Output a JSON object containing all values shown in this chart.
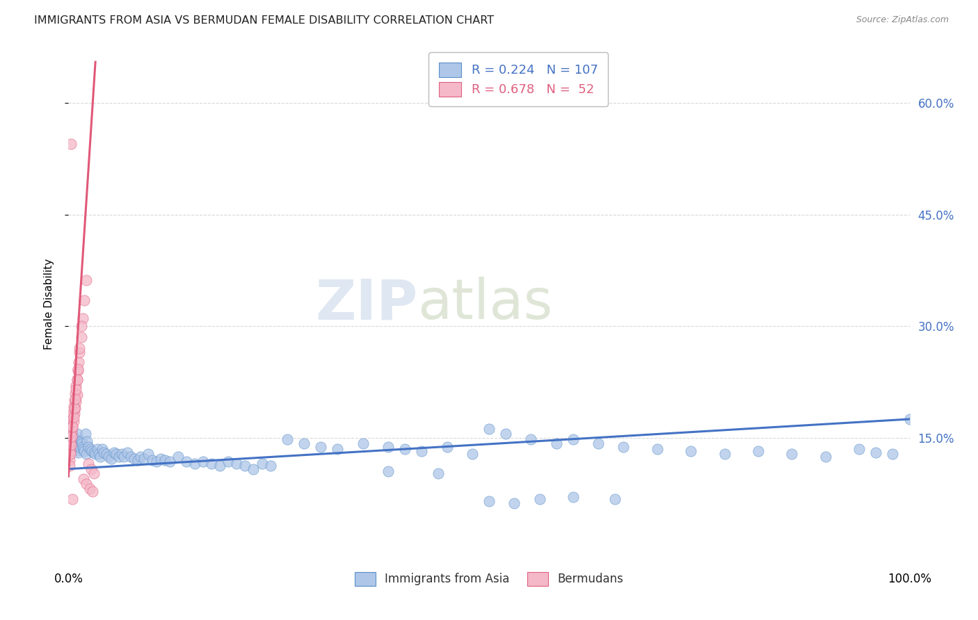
{
  "title": "IMMIGRANTS FROM ASIA VS BERMUDAN FEMALE DISABILITY CORRELATION CHART",
  "source": "Source: ZipAtlas.com",
  "ylabel": "Female Disability",
  "watermark_zip": "ZIP",
  "watermark_atlas": "atlas",
  "legend_labels": [
    "Immigrants from Asia",
    "Bermudans"
  ],
  "blue_R": 0.224,
  "blue_N": 107,
  "pink_R": 0.678,
  "pink_N": 52,
  "blue_color": "#aec6e8",
  "blue_edge_color": "#5b8fc9",
  "pink_color": "#f4b8c8",
  "pink_edge_color": "#e06080",
  "blue_line_color": "#4472c4",
  "pink_line_color": "#e05878",
  "label_color": "#4472c4",
  "xmin": 0.0,
  "xmax": 1.0,
  "ymin": -0.02,
  "ymax": 0.68,
  "yticks": [
    0.15,
    0.3,
    0.45,
    0.6
  ],
  "ytick_labels": [
    "15.0%",
    "30.0%",
    "45.0%",
    "60.0%"
  ],
  "background_color": "#ffffff",
  "grid_color": "#d8d8d8",
  "blue_scatter_x": [
    0.001,
    0.002,
    0.002,
    0.003,
    0.003,
    0.004,
    0.004,
    0.005,
    0.005,
    0.006,
    0.006,
    0.007,
    0.007,
    0.008,
    0.008,
    0.009,
    0.009,
    0.01,
    0.01,
    0.011,
    0.012,
    0.013,
    0.014,
    0.015,
    0.016,
    0.017,
    0.018,
    0.019,
    0.02,
    0.021,
    0.022,
    0.024,
    0.026,
    0.028,
    0.03,
    0.032,
    0.034,
    0.036,
    0.038,
    0.04,
    0.042,
    0.045,
    0.048,
    0.051,
    0.054,
    0.057,
    0.06,
    0.063,
    0.066,
    0.07,
    0.074,
    0.078,
    0.082,
    0.086,
    0.09,
    0.095,
    0.1,
    0.105,
    0.11,
    0.115,
    0.12,
    0.13,
    0.14,
    0.15,
    0.16,
    0.17,
    0.18,
    0.19,
    0.2,
    0.21,
    0.22,
    0.23,
    0.24,
    0.26,
    0.28,
    0.3,
    0.32,
    0.35,
    0.38,
    0.4,
    0.42,
    0.45,
    0.48,
    0.5,
    0.52,
    0.55,
    0.58,
    0.6,
    0.63,
    0.66,
    0.7,
    0.74,
    0.78,
    0.82,
    0.86,
    0.9,
    0.94,
    0.96,
    0.98,
    1.0,
    0.38,
    0.44,
    0.5,
    0.53,
    0.56,
    0.6,
    0.65
  ],
  "blue_scatter_y": [
    0.155,
    0.15,
    0.148,
    0.145,
    0.142,
    0.158,
    0.138,
    0.155,
    0.135,
    0.15,
    0.145,
    0.148,
    0.142,
    0.14,
    0.138,
    0.136,
    0.148,
    0.155,
    0.133,
    0.13,
    0.145,
    0.142,
    0.138,
    0.145,
    0.142,
    0.138,
    0.135,
    0.132,
    0.155,
    0.128,
    0.145,
    0.138,
    0.135,
    0.132,
    0.13,
    0.128,
    0.135,
    0.128,
    0.125,
    0.135,
    0.13,
    0.128,
    0.125,
    0.122,
    0.13,
    0.128,
    0.125,
    0.128,
    0.125,
    0.13,
    0.125,
    0.122,
    0.12,
    0.125,
    0.122,
    0.128,
    0.12,
    0.118,
    0.122,
    0.12,
    0.118,
    0.125,
    0.118,
    0.115,
    0.118,
    0.115,
    0.112,
    0.118,
    0.115,
    0.112,
    0.108,
    0.115,
    0.112,
    0.148,
    0.142,
    0.138,
    0.135,
    0.142,
    0.138,
    0.135,
    0.132,
    0.138,
    0.128,
    0.162,
    0.155,
    0.148,
    0.142,
    0.148,
    0.142,
    0.138,
    0.135,
    0.132,
    0.128,
    0.132,
    0.128,
    0.125,
    0.135,
    0.13,
    0.128,
    0.175,
    0.105,
    0.102,
    0.065,
    0.062,
    0.068,
    0.07,
    0.068
  ],
  "pink_scatter_x": [
    0.001,
    0.001,
    0.001,
    0.002,
    0.002,
    0.002,
    0.003,
    0.003,
    0.004,
    0.004,
    0.005,
    0.005,
    0.006,
    0.006,
    0.007,
    0.007,
    0.008,
    0.008,
    0.009,
    0.009,
    0.01,
    0.01,
    0.011,
    0.012,
    0.013,
    0.015,
    0.017,
    0.019,
    0.021,
    0.024,
    0.027,
    0.03,
    0.001,
    0.001,
    0.002,
    0.003,
    0.004,
    0.005,
    0.006,
    0.007,
    0.008,
    0.009,
    0.01,
    0.011,
    0.013,
    0.015,
    0.018,
    0.021,
    0.025,
    0.029,
    0.003,
    0.005
  ],
  "pink_scatter_y": [
    0.148,
    0.138,
    0.128,
    0.158,
    0.145,
    0.132,
    0.168,
    0.152,
    0.175,
    0.158,
    0.182,
    0.165,
    0.192,
    0.172,
    0.2,
    0.182,
    0.21,
    0.19,
    0.22,
    0.198,
    0.228,
    0.208,
    0.24,
    0.252,
    0.265,
    0.285,
    0.31,
    0.335,
    0.362,
    0.115,
    0.108,
    0.102,
    0.12,
    0.112,
    0.128,
    0.14,
    0.152,
    0.165,
    0.178,
    0.19,
    0.202,
    0.215,
    0.228,
    0.242,
    0.27,
    0.3,
    0.095,
    0.088,
    0.082,
    0.078,
    0.545,
    0.068
  ],
  "blue_trend_x": [
    0.0,
    1.0
  ],
  "blue_trend_y": [
    0.108,
    0.175
  ],
  "pink_trend_x": [
    0.0,
    0.032
  ],
  "pink_trend_y": [
    0.098,
    0.655
  ]
}
